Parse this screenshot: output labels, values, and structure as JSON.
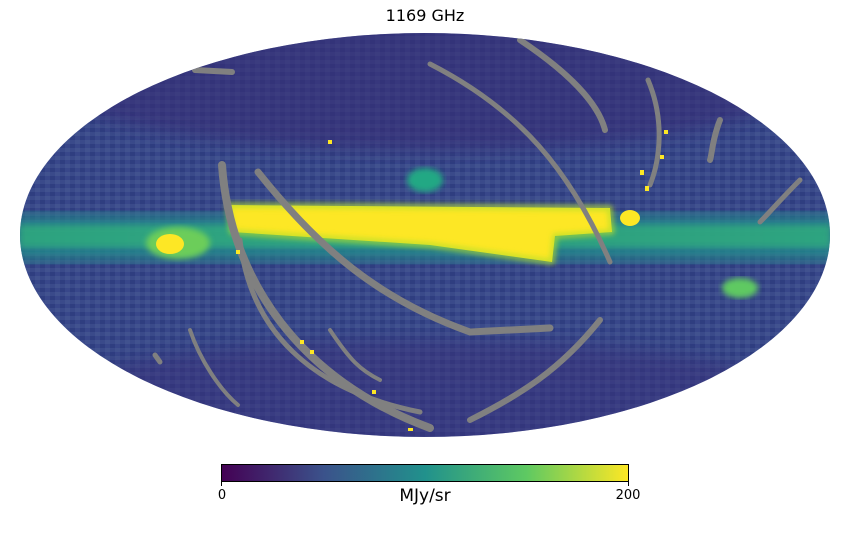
{
  "title": "1169 GHz",
  "projection": "mollweide",
  "colorbar": {
    "min_label": "0",
    "max_label": "200",
    "unit": "MJy/sr",
    "colormap": [
      "#440154",
      "#3b528b",
      "#21918c",
      "#5ec962",
      "#fde725"
    ],
    "mask_color": "#808080"
  }
}
